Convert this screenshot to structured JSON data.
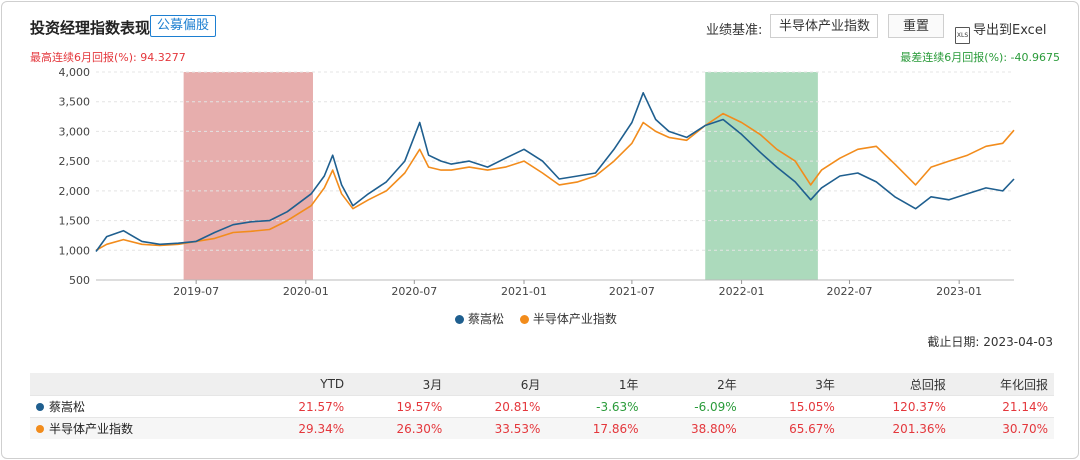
{
  "header": {
    "title": "投资经理指数表现",
    "tag": "公募偏股",
    "benchmark_label": "业绩基准:",
    "benchmark_value": "半导体产业指数",
    "reset_label": "重置",
    "export_label": "导出到Excel",
    "export_icon": "xls-file-icon"
  },
  "drawdown": {
    "max_text": "最高连续6月回报(%):  94.3277",
    "min_text": "最差连续6月回报(%):  -40.9675",
    "max_color": "#e4373c",
    "min_color": "#2a9b3a"
  },
  "colors": {
    "manager": "#1f5f8f",
    "benchmark": "#f28c1c",
    "best_band": "#e3a09f",
    "worst_band": "#9ed3b0",
    "positive": "#e4373c",
    "negative": "#2a9b3a"
  },
  "chart_data": {
    "type": "line",
    "ylim": [
      500,
      4000
    ],
    "y_ticks": [
      "500",
      "1,000",
      "1,500",
      "2,000",
      "2,500",
      "3,000",
      "3,500",
      "4,000"
    ],
    "x_ticks": [
      "2019-07",
      "2020-01",
      "2020-07",
      "2021-01",
      "2021-07",
      "2022-01",
      "2022-07",
      "2023-01"
    ],
    "x_start": "2019-01-14",
    "x_end": "2023-04-03",
    "shaded_ranges": [
      {
        "kind": "best_6m",
        "start": "2019-06-10",
        "end": "2020-01-13"
      },
      {
        "kind": "worst_6m",
        "start": "2021-11-01",
        "end": "2022-05-09"
      }
    ],
    "series": [
      {
        "name": "蔡嵩松",
        "points": [
          [
            "2019-01-14",
            980
          ],
          [
            "2019-02-01",
            1230
          ],
          [
            "2019-03-01",
            1330
          ],
          [
            "2019-04-01",
            1150
          ],
          [
            "2019-05-01",
            1100
          ],
          [
            "2019-06-01",
            1120
          ],
          [
            "2019-07-01",
            1150
          ],
          [
            "2019-08-01",
            1300
          ],
          [
            "2019-09-01",
            1430
          ],
          [
            "2019-10-01",
            1480
          ],
          [
            "2019-11-01",
            1500
          ],
          [
            "2019-12-01",
            1650
          ],
          [
            "2020-01-10",
            1950
          ],
          [
            "2020-02-01",
            2250
          ],
          [
            "2020-02-15",
            2600
          ],
          [
            "2020-03-01",
            2100
          ],
          [
            "2020-03-20",
            1750
          ],
          [
            "2020-04-15",
            1950
          ],
          [
            "2020-05-15",
            2150
          ],
          [
            "2020-06-15",
            2500
          ],
          [
            "2020-07-10",
            3150
          ],
          [
            "2020-07-25",
            2600
          ],
          [
            "2020-08-15",
            2500
          ],
          [
            "2020-09-01",
            2450
          ],
          [
            "2020-10-01",
            2500
          ],
          [
            "2020-11-01",
            2400
          ],
          [
            "2020-12-01",
            2550
          ],
          [
            "2021-01-01",
            2700
          ],
          [
            "2021-02-01",
            2500
          ],
          [
            "2021-03-01",
            2200
          ],
          [
            "2021-04-01",
            2250
          ],
          [
            "2021-05-01",
            2300
          ],
          [
            "2021-06-01",
            2700
          ],
          [
            "2021-07-01",
            3150
          ],
          [
            "2021-07-20",
            3650
          ],
          [
            "2021-08-10",
            3200
          ],
          [
            "2021-09-01",
            3000
          ],
          [
            "2021-10-01",
            2900
          ],
          [
            "2021-11-01",
            3100
          ],
          [
            "2021-12-01",
            3200
          ],
          [
            "2022-01-01",
            2950
          ],
          [
            "2022-02-01",
            2650
          ],
          [
            "2022-03-01",
            2400
          ],
          [
            "2022-04-01",
            2150
          ],
          [
            "2022-04-27",
            1850
          ],
          [
            "2022-05-15",
            2050
          ],
          [
            "2022-06-15",
            2250
          ],
          [
            "2022-07-15",
            2300
          ],
          [
            "2022-08-15",
            2150
          ],
          [
            "2022-09-15",
            1900
          ],
          [
            "2022-10-20",
            1700
          ],
          [
            "2022-11-15",
            1900
          ],
          [
            "2022-12-15",
            1850
          ],
          [
            "2023-01-15",
            1950
          ],
          [
            "2023-02-15",
            2050
          ],
          [
            "2023-03-15",
            2000
          ],
          [
            "2023-04-03",
            2200
          ]
        ]
      },
      {
        "name": "半导体产业指数",
        "points": [
          [
            "2019-01-14",
            1000
          ],
          [
            "2019-02-01",
            1100
          ],
          [
            "2019-03-01",
            1180
          ],
          [
            "2019-04-01",
            1100
          ],
          [
            "2019-05-01",
            1080
          ],
          [
            "2019-06-01",
            1100
          ],
          [
            "2019-07-01",
            1150
          ],
          [
            "2019-08-01",
            1200
          ],
          [
            "2019-09-01",
            1300
          ],
          [
            "2019-10-01",
            1320
          ],
          [
            "2019-11-01",
            1350
          ],
          [
            "2019-12-01",
            1500
          ],
          [
            "2020-01-10",
            1750
          ],
          [
            "2020-02-01",
            2050
          ],
          [
            "2020-02-15",
            2350
          ],
          [
            "2020-03-01",
            1950
          ],
          [
            "2020-03-20",
            1700
          ],
          [
            "2020-04-15",
            1850
          ],
          [
            "2020-05-15",
            2000
          ],
          [
            "2020-06-15",
            2300
          ],
          [
            "2020-07-10",
            2700
          ],
          [
            "2020-07-25",
            2400
          ],
          [
            "2020-08-15",
            2350
          ],
          [
            "2020-09-01",
            2350
          ],
          [
            "2020-10-01",
            2400
          ],
          [
            "2020-11-01",
            2350
          ],
          [
            "2020-12-01",
            2400
          ],
          [
            "2021-01-01",
            2500
          ],
          [
            "2021-02-01",
            2300
          ],
          [
            "2021-03-01",
            2100
          ],
          [
            "2021-04-01",
            2150
          ],
          [
            "2021-05-01",
            2250
          ],
          [
            "2021-06-01",
            2500
          ],
          [
            "2021-07-01",
            2800
          ],
          [
            "2021-07-20",
            3150
          ],
          [
            "2021-08-10",
            3000
          ],
          [
            "2021-09-01",
            2900
          ],
          [
            "2021-10-01",
            2850
          ],
          [
            "2021-11-01",
            3100
          ],
          [
            "2021-12-01",
            3300
          ],
          [
            "2022-01-01",
            3150
          ],
          [
            "2022-02-01",
            2950
          ],
          [
            "2022-03-01",
            2700
          ],
          [
            "2022-04-01",
            2500
          ],
          [
            "2022-04-27",
            2100
          ],
          [
            "2022-05-15",
            2350
          ],
          [
            "2022-06-15",
            2550
          ],
          [
            "2022-07-15",
            2700
          ],
          [
            "2022-08-15",
            2750
          ],
          [
            "2022-09-15",
            2450
          ],
          [
            "2022-10-20",
            2100
          ],
          [
            "2022-11-15",
            2400
          ],
          [
            "2022-12-15",
            2500
          ],
          [
            "2023-01-15",
            2600
          ],
          [
            "2023-02-15",
            2750
          ],
          [
            "2023-03-15",
            2800
          ],
          [
            "2023-04-03",
            3020
          ]
        ]
      }
    ]
  },
  "legend": [
    "蔡嵩松",
    "半导体产业指数"
  ],
  "as_of": "截止日期:  2023-04-03",
  "table": {
    "headers": [
      "",
      "YTD",
      "3月",
      "6月",
      "1年",
      "2年",
      "3年",
      "总回报",
      "年化回报"
    ],
    "rows": [
      {
        "name": "蔡嵩松",
        "values": [
          "21.57%",
          "19.57%",
          "20.81%",
          "-3.63%",
          "-6.09%",
          "15.05%",
          "120.37%",
          "21.14%"
        ]
      },
      {
        "name": "半导体产业指数",
        "values": [
          "29.34%",
          "26.30%",
          "33.53%",
          "17.86%",
          "38.80%",
          "65.67%",
          "201.36%",
          "30.70%"
        ]
      }
    ]
  }
}
